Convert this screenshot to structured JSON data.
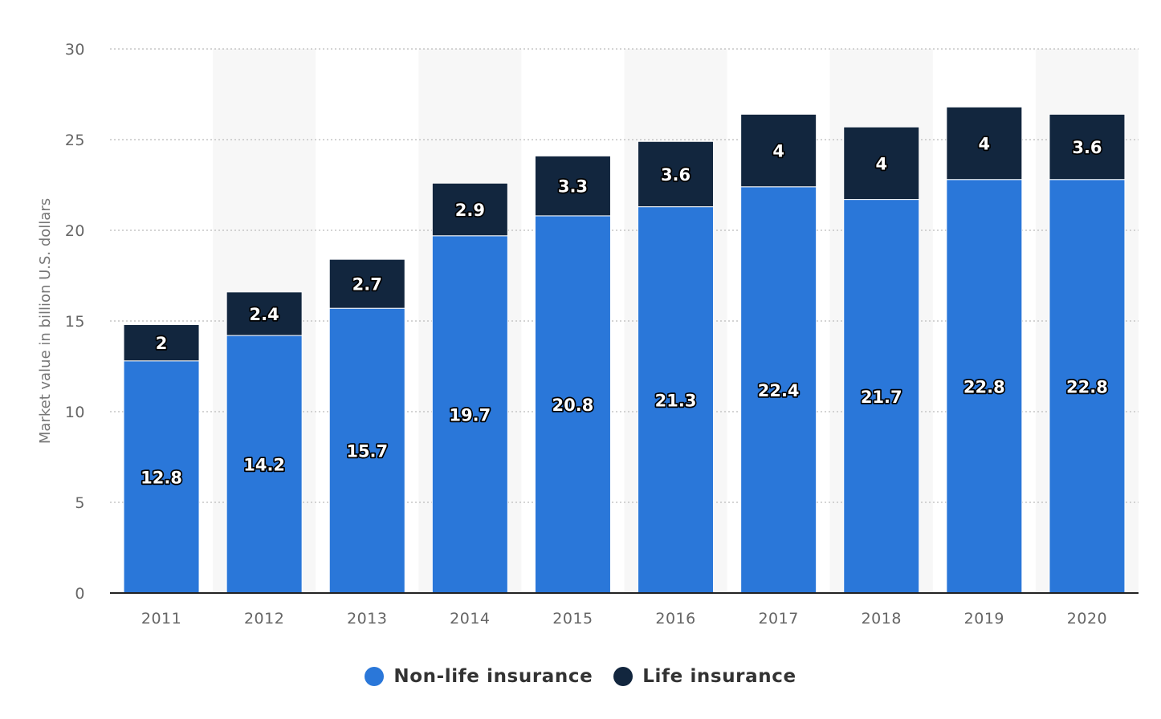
{
  "chart_data": {
    "type": "bar",
    "stacked": true,
    "categories": [
      "2011",
      "2012",
      "2013",
      "2014",
      "2015",
      "2016",
      "2017",
      "2018",
      "2019",
      "2020"
    ],
    "series": [
      {
        "name": "Non-life insurance",
        "color": "#2a77d9",
        "values": [
          12.8,
          14.2,
          15.7,
          19.7,
          20.8,
          21.3,
          22.4,
          21.7,
          22.8,
          22.8
        ]
      },
      {
        "name": "Life insurance",
        "color": "#12263e",
        "values": [
          2,
          2.4,
          2.7,
          2.9,
          3.3,
          3.6,
          4,
          4,
          4,
          3.6
        ]
      }
    ],
    "ylabel": "Market value in billion U.S. dollars",
    "xlabel": "",
    "ylim": [
      0,
      30
    ],
    "yticks": [
      0,
      5,
      10,
      15,
      20,
      25,
      30
    ],
    "grid": true,
    "legend": "bottom-center"
  }
}
